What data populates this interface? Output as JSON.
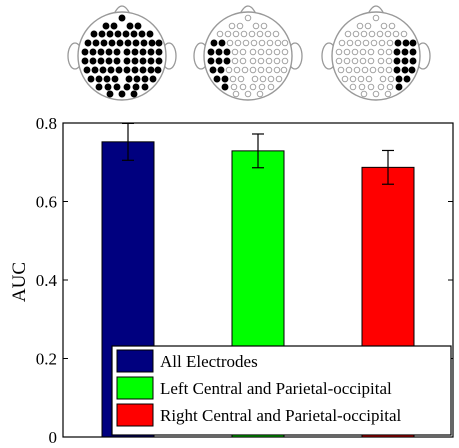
{
  "chart_data": {
    "type": "bar",
    "title": "",
    "xlabel": "",
    "ylabel": "AUC",
    "ylim": [
      0,
      0.8
    ],
    "yticks": [
      "0",
      "0.2",
      "0.4",
      "0.6",
      "0.8"
    ],
    "grid": false,
    "legend_position": "bottom-right",
    "series": [
      {
        "name": "All Electrodes",
        "value": 0.752,
        "error": 0.047,
        "color": "#00007f"
      },
      {
        "name": "Left Central and Parietal-occipital",
        "value": 0.729,
        "error": 0.043,
        "color": "#00ff00"
      },
      {
        "name": "Right Central and Parietal-occipital",
        "value": 0.687,
        "error": 0.043,
        "color": "#ff0000"
      }
    ]
  },
  "head_maps": [
    {
      "selection": "all",
      "filled_color": "#000000",
      "empty_color": "#ffffff",
      "outline_color": "#999999"
    },
    {
      "selection": "left",
      "filled_color": "#000000",
      "empty_color": "#ffffff",
      "outline_color": "#999999"
    },
    {
      "selection": "right",
      "filled_color": "#000000",
      "empty_color": "#ffffff",
      "outline_color": "#999999"
    }
  ]
}
